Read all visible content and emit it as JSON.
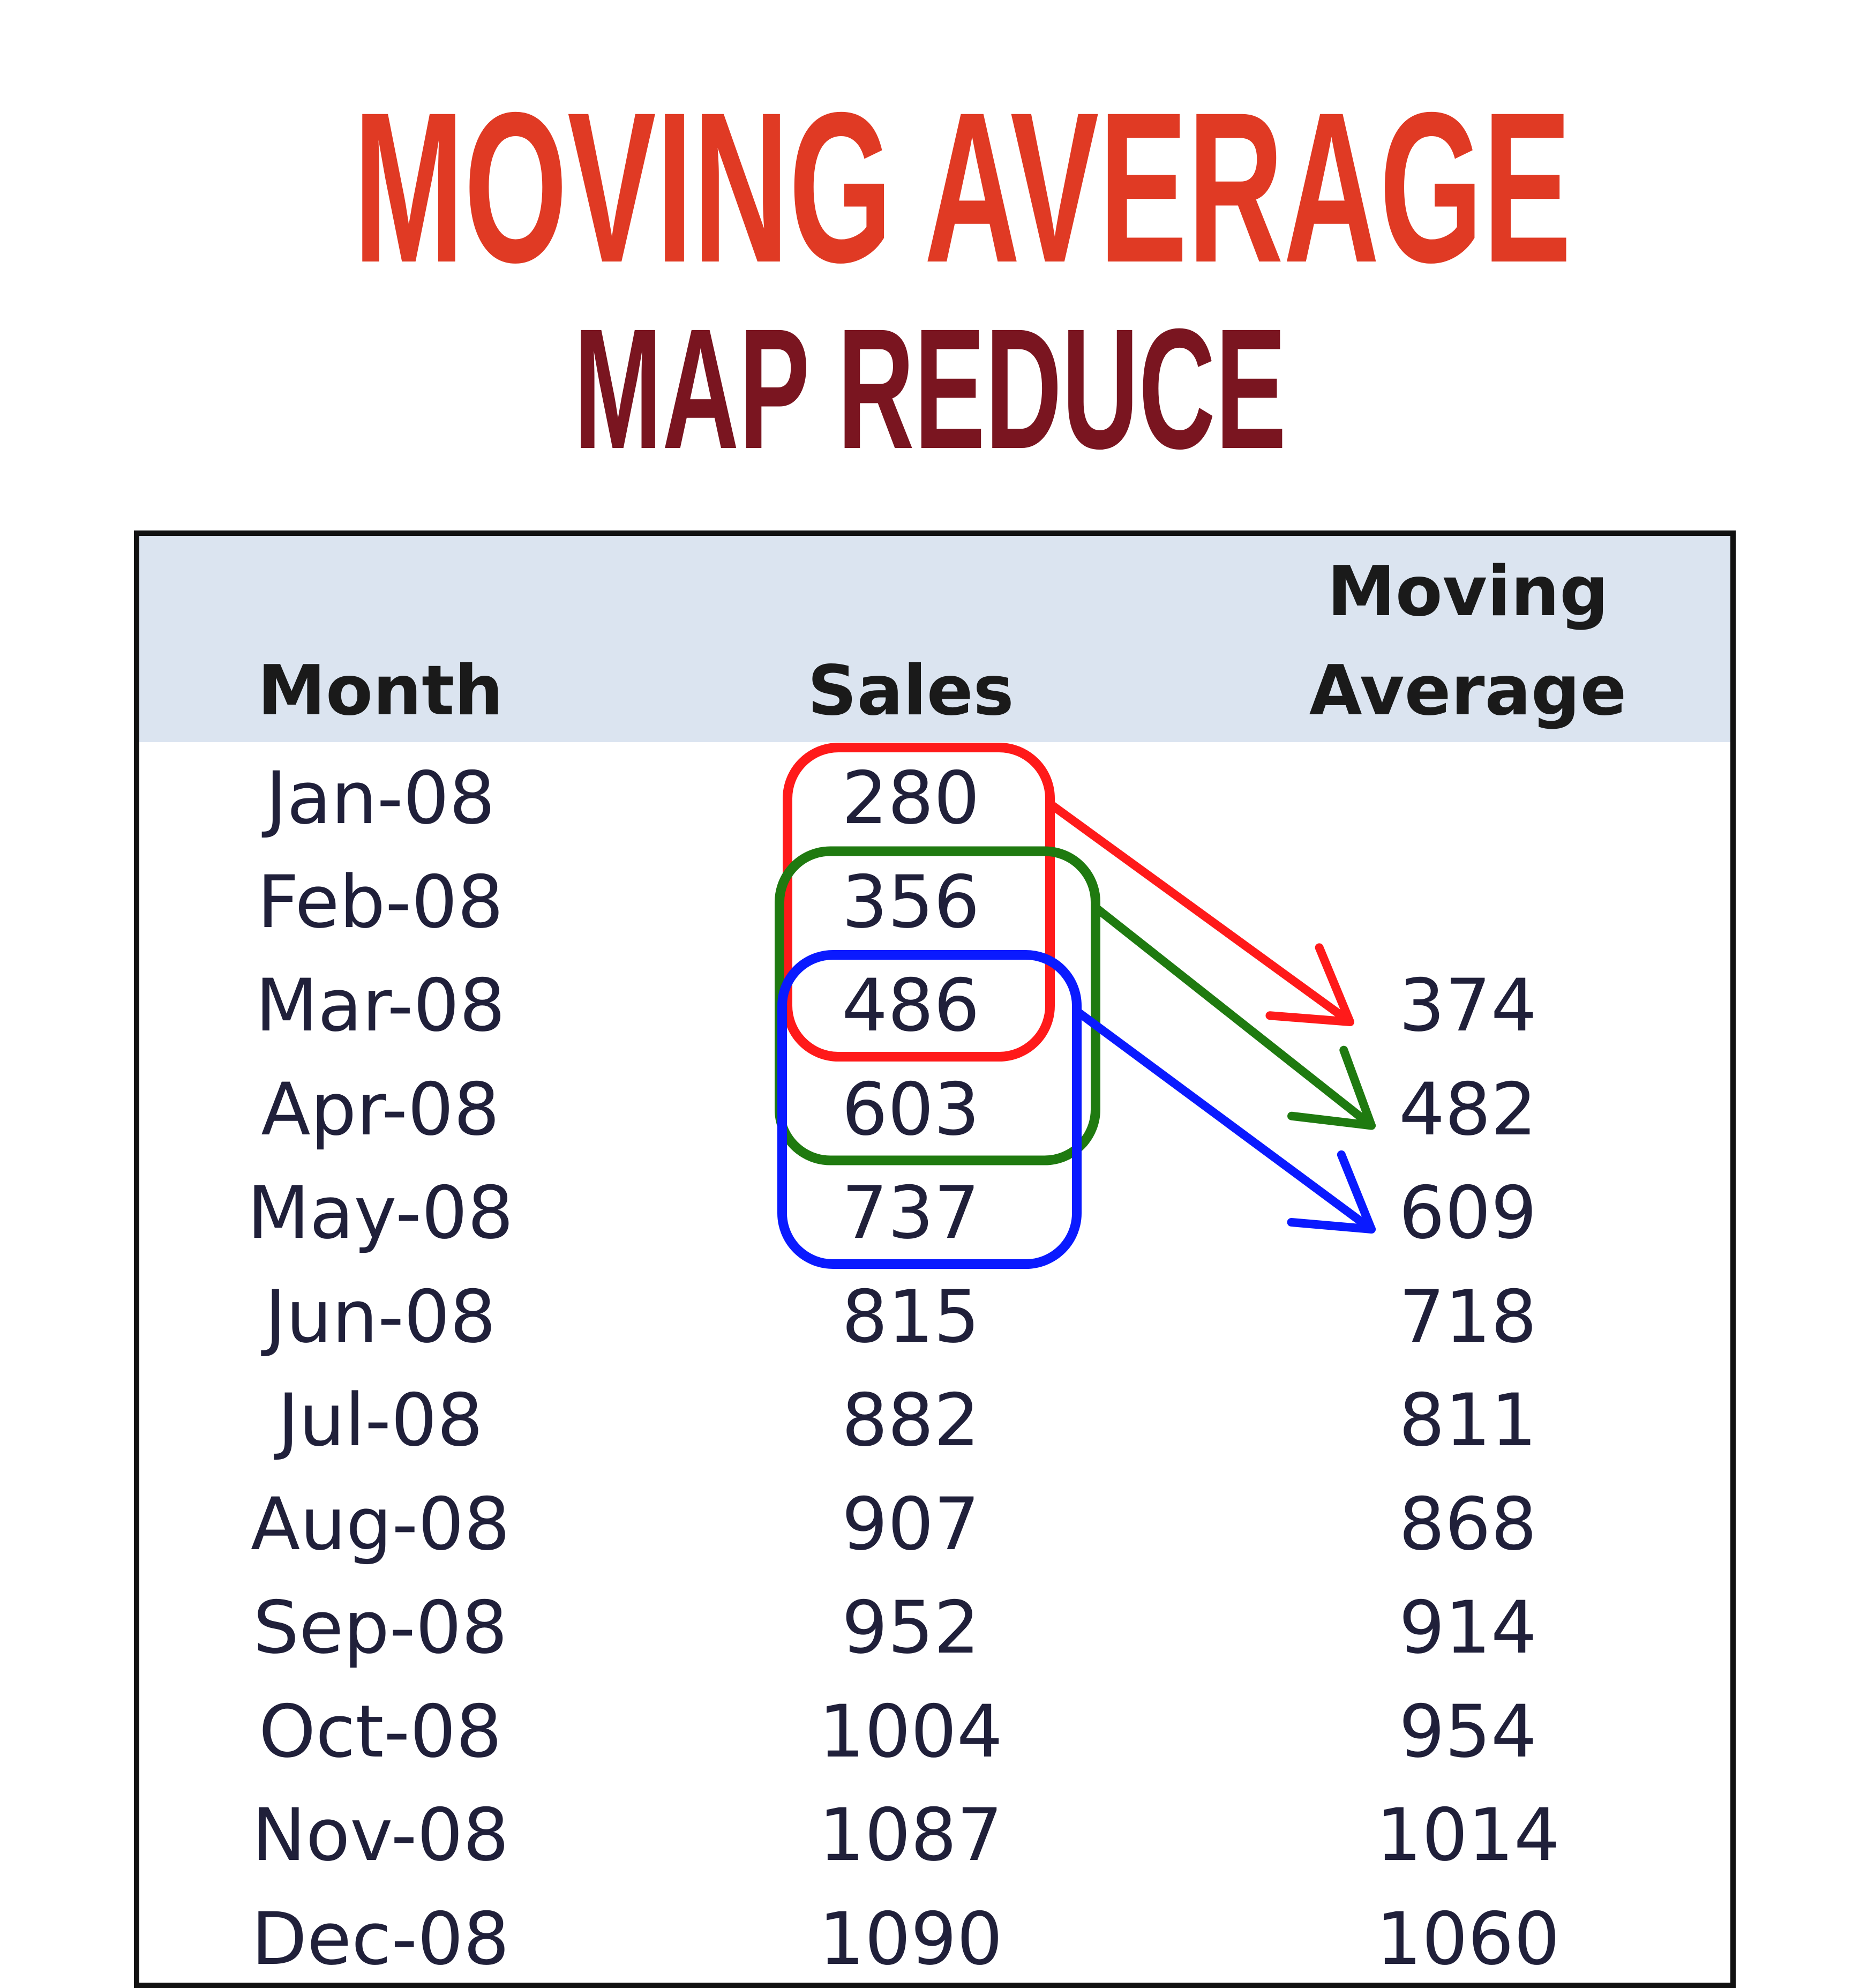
{
  "title": "MOVING AVERAGE",
  "subtitle": "MAP REDUCE",
  "table": {
    "headers": {
      "month": "Month",
      "sales": "Sales",
      "moving_average_line1": "Moving",
      "moving_average_line2": "Average"
    },
    "rows": [
      {
        "month": "Jan-08",
        "sales": "280",
        "moving_average": ""
      },
      {
        "month": "Feb-08",
        "sales": "356",
        "moving_average": ""
      },
      {
        "month": "Mar-08",
        "sales": "486",
        "moving_average": "374"
      },
      {
        "month": "Apr-08",
        "sales": "603",
        "moving_average": "482"
      },
      {
        "month": "May-08",
        "sales": "737",
        "moving_average": "609"
      },
      {
        "month": "Jun-08",
        "sales": "815",
        "moving_average": "718"
      },
      {
        "month": "Jul-08",
        "sales": "882",
        "moving_average": "811"
      },
      {
        "month": "Aug-08",
        "sales": "907",
        "moving_average": "868"
      },
      {
        "month": "Sep-08",
        "sales": "952",
        "moving_average": "914"
      },
      {
        "month": "Oct-08",
        "sales": "1004",
        "moving_average": "954"
      },
      {
        "month": "Nov-08",
        "sales": "1087",
        "moving_average": "1014"
      },
      {
        "month": "Dec-08",
        "sales": "1090",
        "moving_average": "1060"
      }
    ]
  },
  "windows": [
    {
      "name": "window-1",
      "color": "#ff1a1a",
      "from_row": 0,
      "to_row": 2,
      "target_row": 2
    },
    {
      "name": "window-2",
      "color": "#1f7a10",
      "from_row": 1,
      "to_row": 3,
      "target_row": 3
    },
    {
      "name": "window-3",
      "color": "#0a1aff",
      "from_row": 2,
      "to_row": 4,
      "target_row": 4
    }
  ],
  "colors": {
    "title": "#e03a24",
    "subtitle": "#7a1520",
    "header_background": "#dbe4f0",
    "border": "#111111"
  }
}
